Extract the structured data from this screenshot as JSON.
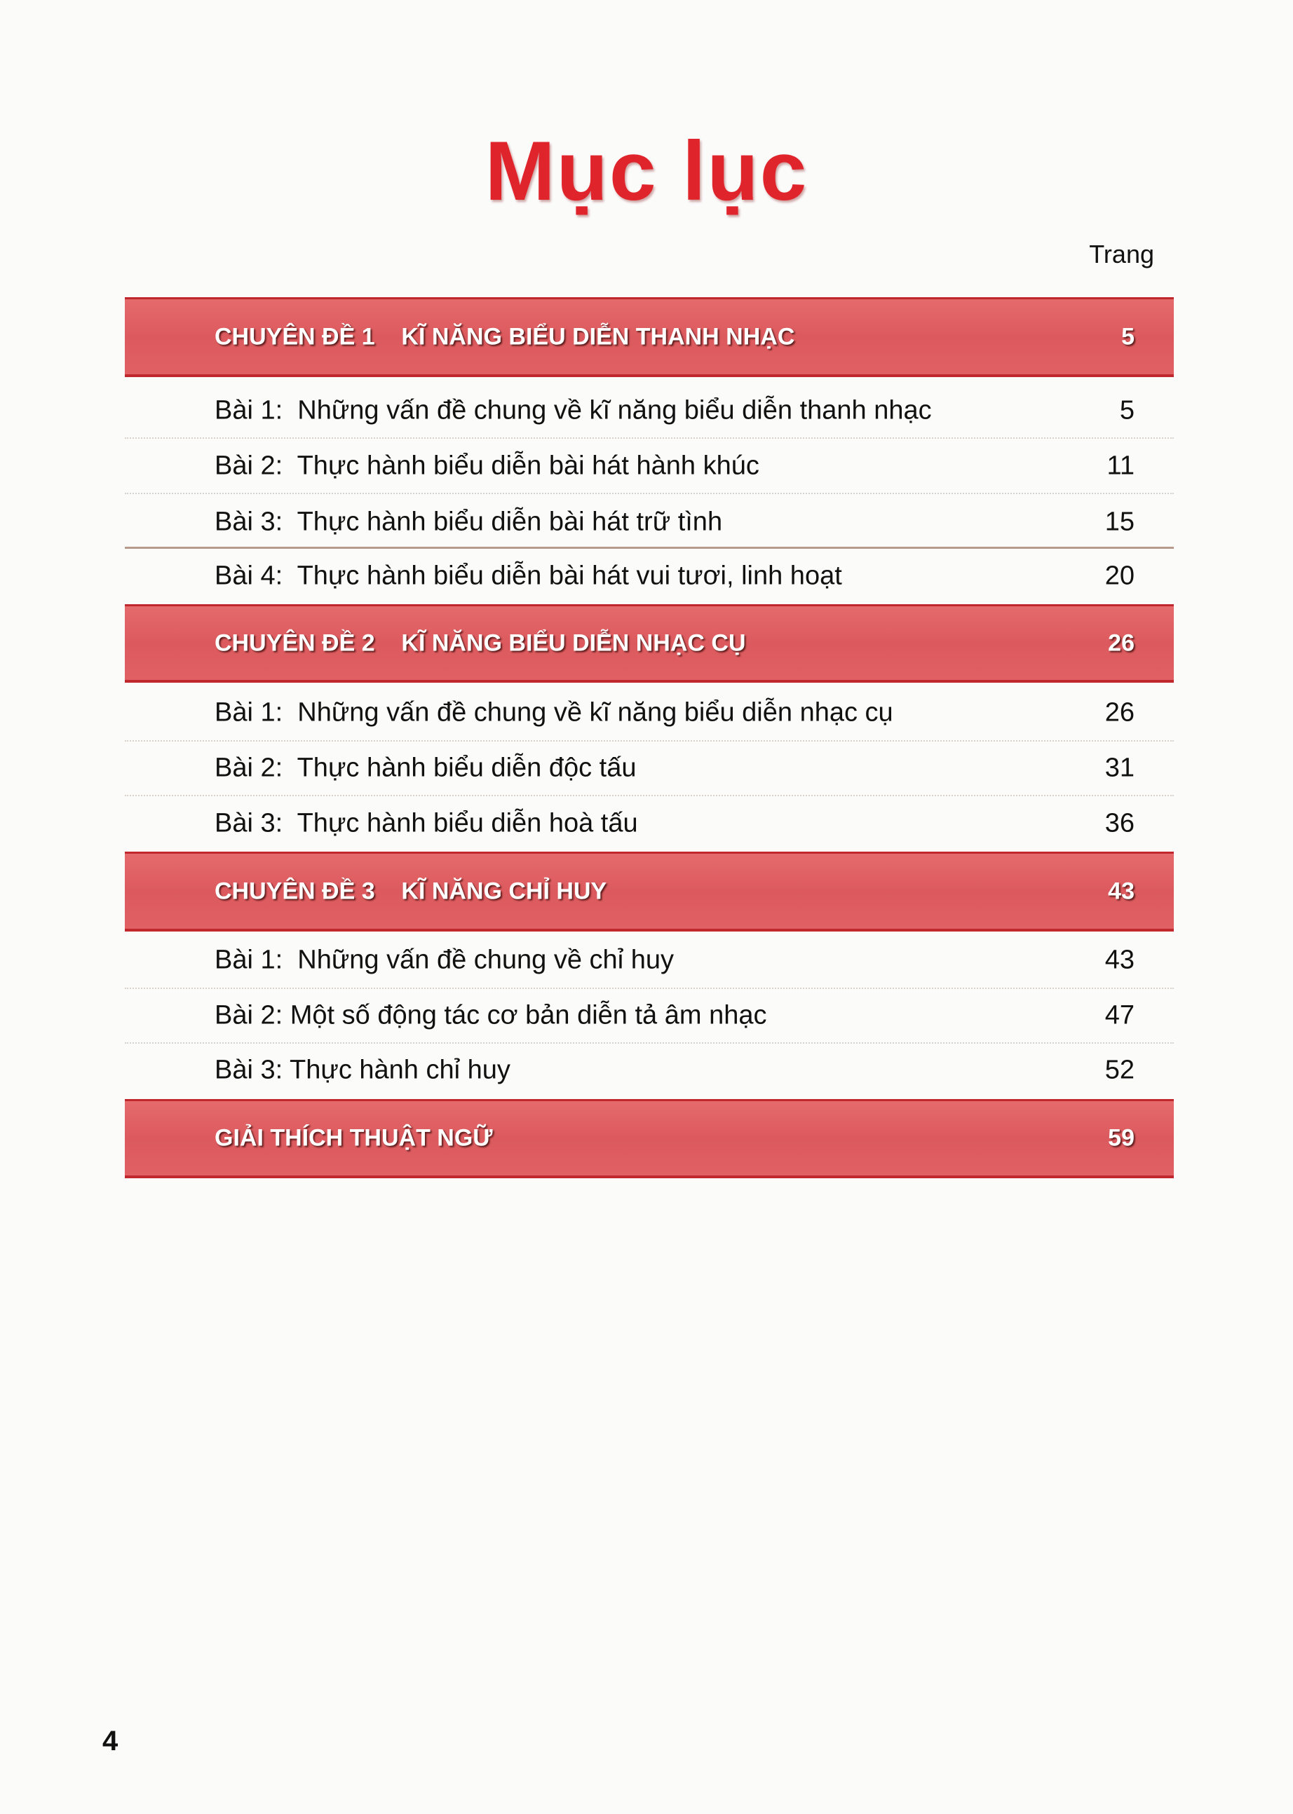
{
  "title": "Mục lục",
  "page_column_label": "Trang",
  "sections": [
    {
      "heading": "CHUYÊN ĐỀ 1    KĨ NĂNG BIỂU DIỄN THANH NHẠC",
      "page": "5",
      "lessons": [
        {
          "label": "Bài 1:  Những vấn đề chung về kĩ năng biểu diễn thanh nhạc",
          "page": "5"
        },
        {
          "label": "Bài 2:  Thực hành biểu diễn bài hát hành khúc",
          "page": "11"
        },
        {
          "label": "Bài 3:  Thực hành biểu diễn bài hát trữ tình",
          "page": "15"
        },
        {
          "label": "Bài 4:  Thực hành biểu diễn bài hát vui tươi, linh hoạt",
          "page": "20"
        }
      ]
    },
    {
      "heading": "CHUYÊN ĐỀ 2    KĨ NĂNG BIỂU DIỄN NHẠC CỤ",
      "page": "26",
      "lessons": [
        {
          "label": "Bài 1:  Những vấn đề chung về kĩ năng biểu diễn nhạc cụ",
          "page": "26"
        },
        {
          "label": "Bài 2:  Thực hành biểu diễn độc tấu",
          "page": "31"
        },
        {
          "label": "Bài 3:  Thực hành biểu diễn hoà tấu",
          "page": "36"
        }
      ]
    },
    {
      "heading": "CHUYÊN ĐỀ 3    KĨ NĂNG CHỈ HUY",
      "page": "43",
      "lessons": [
        {
          "label": "Bài 1:  Những vấn đề chung về chỉ huy",
          "page": "43"
        },
        {
          "label": "Bài 2: Một số động tác cơ bản diễn tả âm nhạc",
          "page": "47"
        },
        {
          "label": "Bài 3: Thực hành chỉ huy",
          "page": "52"
        }
      ]
    },
    {
      "heading": "GIẢI THÍCH THUẬT NGỮ",
      "page": "59",
      "lessons": []
    }
  ],
  "page_number": "4",
  "colors": {
    "title": "#e0242c",
    "band": "#dc5a5e",
    "band_border": "#c0282e"
  }
}
